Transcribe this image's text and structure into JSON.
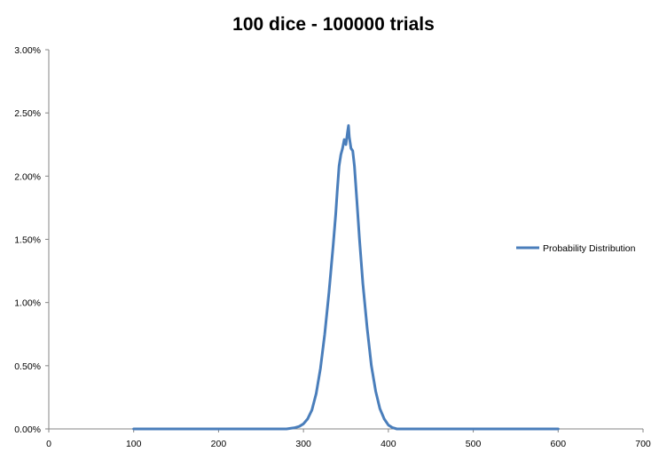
{
  "chart_data": {
    "type": "line",
    "title": "100 dice - 100000 trials",
    "xlabel": "",
    "ylabel": "",
    "xlim": [
      0,
      700
    ],
    "ylim": [
      0,
      0.03
    ],
    "x_ticks": [
      0,
      100,
      200,
      300,
      400,
      500,
      600,
      700
    ],
    "y_ticks": [
      0,
      0.005,
      0.01,
      0.015,
      0.02,
      0.025,
      0.03
    ],
    "y_tick_labels": [
      "0.00%",
      "0.50%",
      "1.00%",
      "1.50%",
      "2.00%",
      "2.50%",
      "3.00%"
    ],
    "grid": false,
    "legend_position": "right",
    "colors": {
      "series": "#4a7ebb",
      "axis": "#868686"
    },
    "series": [
      {
        "name": "Probability Distribution",
        "x": [
          100,
          200,
          280,
          290,
          295,
          300,
          305,
          310,
          315,
          320,
          325,
          330,
          335,
          338,
          340,
          342,
          344,
          346,
          348,
          350,
          352,
          353,
          354,
          356,
          358,
          360,
          363,
          366,
          370,
          375,
          380,
          385,
          390,
          395,
          400,
          405,
          410,
          420,
          500,
          600
        ],
        "y": [
          0,
          0,
          0,
          0.0001,
          0.0002,
          0.0004,
          0.0008,
          0.0015,
          0.0028,
          0.0048,
          0.0075,
          0.0108,
          0.0145,
          0.017,
          0.019,
          0.0208,
          0.0217,
          0.0222,
          0.0229,
          0.0225,
          0.0235,
          0.024,
          0.0231,
          0.0222,
          0.022,
          0.0208,
          0.018,
          0.015,
          0.0115,
          0.008,
          0.005,
          0.003,
          0.0016,
          0.0008,
          0.0003,
          0.0001,
          0,
          0,
          0,
          0
        ]
      }
    ]
  }
}
